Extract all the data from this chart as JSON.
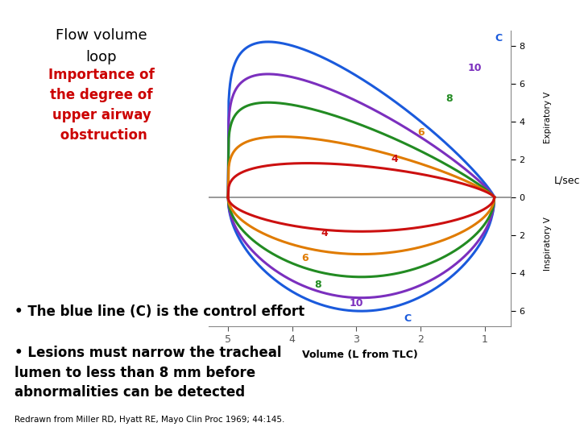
{
  "title_line1": "Flow volume",
  "title_line2": "loop",
  "subtitle": "Importance of\nthe degree of\nupper airway\n obstruction",
  "xlabel": "Volume (L from TLC)",
  "ylabel_right_top": "Expiratory V",
  "ylabel_right_bottom": "Inspiratory V",
  "ylabel_right_unit": "L/sec",
  "bullet1": "The blue line (C) is the control effort",
  "bullet2": "Lesions must narrow the tracheal\nlumen to less than 8 mm before\nabnormalities can be detected",
  "footnote": "Redrawn from Miller RD, Hyatt RE, Mayo Clin Proc 1969; 44:145.",
  "bg_color": "#ffffff",
  "curves": [
    {
      "label": "C",
      "color": "#1a5adc",
      "exp_peak": 8.2,
      "insp_peak": 6.0,
      "exp_alpha": 0.15,
      "insp_alpha": 0.5
    },
    {
      "label": "10",
      "color": "#7b2fbe",
      "exp_peak": 6.5,
      "insp_peak": 5.3,
      "exp_alpha": 0.15,
      "insp_alpha": 0.5
    },
    {
      "label": "8",
      "color": "#228b22",
      "exp_peak": 5.0,
      "insp_peak": 4.2,
      "exp_alpha": 0.15,
      "insp_alpha": 0.5
    },
    {
      "label": "6",
      "color": "#e07b00",
      "exp_peak": 3.2,
      "insp_peak": 3.0,
      "exp_alpha": 0.2,
      "insp_alpha": 0.5
    },
    {
      "label": "4",
      "color": "#cc1010",
      "exp_peak": 1.8,
      "insp_peak": 1.8,
      "exp_alpha": 0.3,
      "insp_alpha": 0.5
    }
  ],
  "xlim": [
    5.3,
    0.6
  ],
  "ylim": [
    -6.8,
    8.8
  ],
  "xticks": [
    5,
    4,
    3,
    2,
    1
  ],
  "yticks_right": [
    -6,
    -4,
    -2,
    0,
    2,
    4,
    6,
    8
  ]
}
